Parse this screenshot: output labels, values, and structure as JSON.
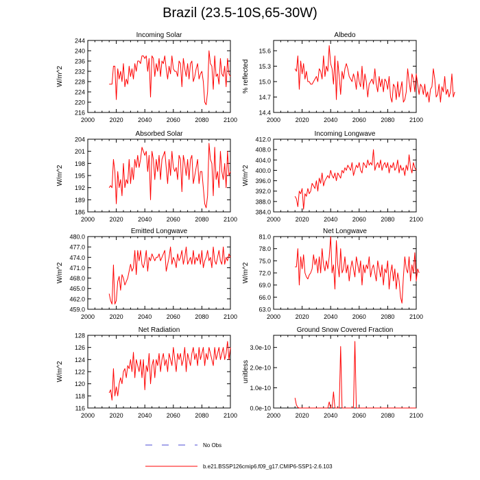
{
  "page_title": "Brazil (23.5-10S,65-30W)",
  "colors": {
    "series": "#ff0000",
    "obs": "#4b4bd6",
    "axis": "#000000"
  },
  "legend": {
    "obs_label": "No Obs",
    "model_label": "b.e21.BSSP126cmip6.f09_g17.CMIP6-SSP1-2.6.103"
  },
  "chart_data": [
    {
      "id": "incoming-solar",
      "type": "line",
      "title": "Incoming Solar",
      "ylabel": "W/m^2",
      "xlim": [
        2000,
        2100
      ],
      "ylim": [
        216,
        244
      ],
      "xticks": [
        2000,
        2020,
        2040,
        2060,
        2080,
        2100
      ],
      "xtick_labels": [
        "2000",
        "2020",
        "2040",
        "2060",
        "2080",
        "2100"
      ],
      "yticks": [
        216,
        220,
        224,
        228,
        232,
        236,
        240,
        244
      ],
      "ytick_labels": [
        "216",
        "220",
        "224",
        "228",
        "232",
        "236",
        "240",
        "244"
      ],
      "x_start": 2015,
      "series": [
        {
          "name": "b.e21.BSSP126cmip6.f09_g17.CMIP6-SSP1-2.6.103",
          "values": [
            227,
            227,
            227,
            234,
            234,
            221,
            233,
            229,
            232,
            228,
            235,
            226,
            229,
            227,
            234,
            230,
            233,
            229,
            235,
            232,
            236,
            236,
            235,
            238,
            238,
            237,
            238,
            232,
            237,
            222,
            238,
            237,
            230,
            235,
            232,
            237,
            230,
            236,
            235,
            238,
            233,
            229,
            234,
            231,
            238,
            233,
            232,
            232,
            230,
            236,
            235,
            226,
            237,
            233,
            230,
            235,
            229,
            235,
            236,
            228,
            230,
            233,
            235,
            229,
            231,
            232,
            228,
            220,
            219,
            224,
            240,
            235,
            234,
            225,
            238,
            230,
            231,
            227,
            237,
            231,
            230,
            234,
            226,
            237,
            231,
            230
          ]
        }
      ]
    },
    {
      "id": "albedo",
      "type": "line",
      "title": "Albedo",
      "ylabel": "% reflected",
      "xlim": [
        2000,
        2100
      ],
      "ylim": [
        14.4,
        15.8
      ],
      "xticks": [
        2000,
        2020,
        2040,
        2060,
        2080,
        2100
      ],
      "xtick_labels": [
        "2000",
        "2020",
        "2040",
        "2060",
        "2080",
        "2100"
      ],
      "yticks": [
        14.4,
        14.7,
        15.0,
        15.3,
        15.6
      ],
      "ytick_labels": [
        "14.4",
        "14.7",
        "15.0",
        "15.3",
        "15.6"
      ],
      "x_start": 2015,
      "series": [
        {
          "name": "b.e21.BSSP126cmip6.f09_g17.CMIP6-SSP1-2.6.103",
          "values": [
            15.25,
            15.2,
            15.5,
            14.85,
            15.4,
            15.15,
            15.35,
            15.05,
            15.2,
            15.0,
            15.0,
            14.95,
            14.95,
            15.0,
            15.05,
            15.1,
            15.0,
            15.25,
            15.2,
            15.05,
            15.5,
            15.1,
            15.3,
            15.2,
            15.7,
            15.35,
            15.25,
            14.95,
            15.5,
            14.65,
            15.4,
            15.1,
            14.75,
            15.2,
            15.05,
            15.25,
            15.35,
            15.25,
            15.1,
            15.05,
            15.0,
            15.15,
            15.05,
            14.85,
            15.2,
            15.0,
            14.9,
            15.3,
            14.85,
            15.15,
            15.0,
            14.7,
            14.95,
            15.0,
            15.05,
            14.95,
            15.25,
            14.95,
            14.8,
            15.1,
            14.9,
            15.05,
            14.8,
            15.05,
            15.0,
            14.85,
            15.1,
            14.7,
            14.6,
            14.95,
            14.9,
            14.65,
            15.0,
            14.7,
            14.85,
            15.0,
            14.6,
            14.65,
            14.8,
            15.25,
            15.0,
            14.8,
            15.15,
            15.05,
            14.8,
            15.15,
            14.95,
            14.75,
            14.95,
            14.9,
            14.75,
            14.95,
            14.7,
            14.8,
            14.6,
            14.85,
            14.9,
            15.25,
            15.05,
            14.7,
            14.75,
            14.95,
            14.6,
            14.9,
            14.8,
            15.1,
            14.75,
            14.85,
            14.7,
            14.8,
            15.15,
            14.7,
            14.8
          ]
        }
      ]
    },
    {
      "id": "absorbed-solar",
      "type": "line",
      "title": "Absorbed Solar",
      "ylabel": "W/m^2",
      "xlim": [
        2000,
        2100
      ],
      "ylim": [
        186,
        204
      ],
      "xticks": [
        2000,
        2020,
        2040,
        2060,
        2080,
        2100
      ],
      "xtick_labels": [
        "2000",
        "2020",
        "2040",
        "2060",
        "2080",
        "2100"
      ],
      "yticks": [
        186,
        189,
        192,
        195,
        198,
        201,
        204
      ],
      "ytick_labels": [
        "186",
        "189",
        "192",
        "195",
        "198",
        "201",
        "204"
      ],
      "x_start": 2015,
      "series": [
        {
          "name": "b.e21.BSSP126cmip6.f09_g17.CMIP6-SSP1-2.6.103",
          "values": [
            192,
            192.5,
            192,
            199,
            196,
            188,
            196,
            192,
            194,
            190,
            198,
            192,
            194,
            193,
            199,
            193,
            197,
            194,
            199,
            197,
            200,
            197,
            199,
            202,
            201,
            200,
            201,
            196,
            200,
            189,
            201,
            199,
            194,
            199,
            196,
            200,
            194,
            199,
            200,
            201,
            197,
            193,
            199,
            195,
            201,
            197,
            196,
            197,
            194,
            200,
            199,
            191,
            200,
            198,
            195,
            199,
            194,
            199,
            200,
            193,
            195,
            197,
            199,
            193,
            196,
            196,
            192,
            188,
            187,
            190,
            203,
            199,
            198,
            190,
            202,
            194,
            196,
            192,
            201,
            196,
            194,
            198,
            192,
            201,
            195,
            196
          ]
        }
      ]
    },
    {
      "id": "incoming-longwave",
      "type": "line",
      "title": "Incoming Longwave",
      "ylabel": "W/m^2",
      "xlim": [
        2000,
        2100
      ],
      "ylim": [
        384.0,
        412.0
      ],
      "xticks": [
        2000,
        2020,
        2040,
        2060,
        2080,
        2100
      ],
      "xtick_labels": [
        "2000",
        "2020",
        "2040",
        "2060",
        "2080",
        "2100"
      ],
      "yticks": [
        384.0,
        388.0,
        392.0,
        396.0,
        400.0,
        404.0,
        408.0,
        412.0
      ],
      "ytick_labels": [
        "384.0",
        "388.0",
        "392.0",
        "396.0",
        "400.0",
        "404.0",
        "408.0",
        "412.0"
      ],
      "x_start": 2015,
      "series": [
        {
          "name": "b.e21.BSSP126cmip6.f09_g17.CMIP6-SSP1-2.6.103",
          "values": [
            390,
            389,
            386,
            392,
            391,
            393,
            385,
            391,
            390,
            393,
            391,
            392,
            395,
            394,
            393,
            396,
            392,
            397,
            395,
            399,
            394,
            396,
            397,
            398,
            397,
            400,
            398,
            397,
            399,
            396,
            399,
            398,
            397,
            400,
            399,
            401,
            400,
            402,
            401,
            400,
            403,
            398,
            400,
            402,
            401,
            403,
            400,
            399,
            403,
            402,
            401,
            404,
            402,
            403,
            402,
            408,
            400,
            402,
            403,
            401,
            404,
            400,
            402,
            403,
            401,
            403,
            399,
            402,
            401,
            403,
            400,
            401,
            404,
            399,
            402,
            400,
            401,
            398,
            402,
            400,
            406,
            401,
            399,
            403,
            401,
            400
          ]
        }
      ]
    },
    {
      "id": "emitted-longwave",
      "type": "line",
      "title": "Emitted Longwave",
      "ylabel": "W/m^2",
      "xlim": [
        2000,
        2100
      ],
      "ylim": [
        459.0,
        480.0
      ],
      "xticks": [
        2000,
        2020,
        2040,
        2060,
        2080,
        2100
      ],
      "xtick_labels": [
        "2000",
        "2020",
        "2040",
        "2060",
        "2080",
        "2100"
      ],
      "yticks": [
        459.0,
        462.0,
        465.0,
        468.0,
        471.0,
        474.0,
        477.0,
        480.0
      ],
      "ytick_labels": [
        "459.0",
        "462.0",
        "465.0",
        "468.0",
        "471.0",
        "474.0",
        "477.0",
        "480.0"
      ],
      "x_start": 2015,
      "series": [
        {
          "name": "b.e21.BSSP126cmip6.f09_g17.CMIP6-SSP1-2.6.103",
          "values": [
            463.5,
            461.5,
            460.5,
            471.8,
            460.5,
            461.5,
            467,
            468.5,
            464.5,
            469,
            468,
            466,
            467,
            468,
            470,
            472,
            470,
            471,
            476,
            469,
            476,
            473,
            476,
            472,
            471,
            473,
            476,
            470,
            474,
            473,
            475,
            474,
            473,
            474,
            474,
            475,
            473,
            474,
            475,
            476,
            470,
            472,
            474,
            477,
            472,
            474,
            473,
            471,
            475,
            473,
            474,
            476,
            472,
            474,
            477,
            472,
            473,
            474,
            472,
            476,
            472,
            474,
            473,
            475,
            472,
            476,
            471,
            473,
            474,
            476,
            473,
            474,
            471,
            477,
            473,
            472,
            474,
            476,
            473,
            472,
            477,
            472,
            474,
            473,
            475,
            474
          ]
        }
      ]
    },
    {
      "id": "net-longwave",
      "type": "line",
      "title": "Net Longwave",
      "ylabel": "W/m^2",
      "xlim": [
        2000,
        2100
      ],
      "ylim": [
        63.0,
        81.0
      ],
      "xticks": [
        2000,
        2020,
        2040,
        2060,
        2080,
        2100
      ],
      "xtick_labels": [
        "2000",
        "2020",
        "2040",
        "2060",
        "2080",
        "2100"
      ],
      "yticks": [
        63.0,
        66.0,
        69.0,
        72.0,
        75.0,
        78.0,
        81.0
      ],
      "ytick_labels": [
        "63.0",
        "66.0",
        "69.0",
        "72.0",
        "75.0",
        "78.0",
        "81.0"
      ],
      "x_start": 2015,
      "series": [
        {
          "name": "b.e21.BSSP126cmip6.f09_g17.CMIP6-SSP1-2.6.103",
          "values": [
            73.5,
            73.5,
            78,
            69,
            76,
            73,
            76.5,
            72,
            71,
            70.5,
            71.5,
            72,
            73,
            76.5,
            74,
            75.5,
            72,
            76,
            72,
            78,
            74,
            72.5,
            75,
            73,
            76,
            81,
            72,
            74,
            68,
            80,
            74,
            71,
            78,
            72,
            73,
            76,
            72,
            74,
            70,
            73,
            75,
            73,
            71,
            76,
            74,
            72,
            75,
            69,
            74,
            72,
            74,
            73,
            76,
            71,
            73,
            74,
            72,
            70,
            75,
            73,
            71,
            74,
            69,
            73,
            72,
            75,
            68,
            72,
            74,
            70,
            73,
            68,
            72,
            70,
            66,
            64.5,
            71,
            76,
            73,
            72,
            76,
            70,
            74,
            72,
            77,
            70,
            73,
            72
          ]
        }
      ]
    },
    {
      "id": "net-radiation",
      "type": "line",
      "title": "Net Radiation",
      "ylabel": "W/m^2",
      "xlim": [
        2000,
        2100
      ],
      "ylim": [
        116,
        128
      ],
      "xticks": [
        2000,
        2020,
        2040,
        2060,
        2080,
        2100
      ],
      "xtick_labels": [
        "2000",
        "2020",
        "2040",
        "2060",
        "2080",
        "2100"
      ],
      "yticks": [
        116,
        118,
        120,
        122,
        124,
        126,
        128
      ],
      "ytick_labels": [
        "116",
        "118",
        "120",
        "122",
        "124",
        "126",
        "128"
      ],
      "x_start": 2015,
      "series": [
        {
          "name": "b.e21.BSSP126cmip6.f09_g17.CMIP6-SSP1-2.6.103",
          "values": [
            118.5,
            119,
            117.3,
            122.5,
            118,
            119.5,
            118,
            120,
            121,
            120,
            122,
            122.5,
            121,
            123,
            122.5,
            124,
            122,
            125.2,
            121,
            124,
            123,
            122,
            124,
            121,
            124,
            119,
            123,
            122,
            125,
            120,
            123,
            124,
            121,
            124,
            123,
            125,
            122,
            124,
            125,
            123,
            124,
            122,
            125,
            124,
            123,
            126,
            124,
            122,
            125,
            124,
            125,
            123,
            124,
            126,
            122,
            125,
            124,
            123,
            125,
            126,
            124,
            125,
            123,
            126,
            124,
            125,
            126,
            123,
            125,
            124,
            126,
            125,
            124,
            123,
            126,
            124,
            125,
            126,
            124,
            125,
            126,
            124,
            125,
            127,
            124,
            126
          ]
        }
      ]
    },
    {
      "id": "ground-snow",
      "type": "line",
      "title": "Ground Snow Covered Fraction",
      "ylabel": "unitless",
      "xlim": [
        2000,
        2100
      ],
      "ylim": [
        0,
        3.6e-10
      ],
      "xticks": [
        2000,
        2020,
        2040,
        2060,
        2080,
        2100
      ],
      "xtick_labels": [
        "2000",
        "2020",
        "2040",
        "2060",
        "2080",
        "2100"
      ],
      "yticks": [
        0,
        1e-10,
        2e-10,
        3e-10
      ],
      "ytick_labels": [
        "0.0e-10",
        "1.0e-10",
        "2.0e-10",
        "3.0e-10"
      ],
      "x_start": 2015,
      "series": [
        {
          "name": "b.e21.BSSP126cmip6.f09_g17.CMIP6-SSP1-2.6.103",
          "values": [
            5e-11,
            1.5e-11,
            3e-12,
            0,
            0,
            0,
            0,
            0,
            0,
            0,
            0,
            0,
            0,
            0,
            0,
            0,
            0,
            0,
            0,
            0,
            0,
            0,
            0,
            0,
            3e-11,
            0,
            0,
            8e-11,
            0,
            0,
            0,
            0,
            3.05e-10,
            0,
            0,
            0,
            0,
            0,
            0,
            0,
            0,
            0,
            3.3e-10,
            0,
            0,
            0,
            0,
            0,
            0,
            0,
            0,
            0,
            0,
            0,
            0,
            0,
            0,
            0,
            0,
            0,
            0,
            0,
            0,
            0,
            0,
            0,
            0,
            0,
            0,
            0,
            0,
            0,
            0,
            0,
            0,
            0,
            0,
            0,
            0,
            0,
            0,
            0,
            0,
            0,
            0,
            0
          ]
        }
      ]
    }
  ]
}
